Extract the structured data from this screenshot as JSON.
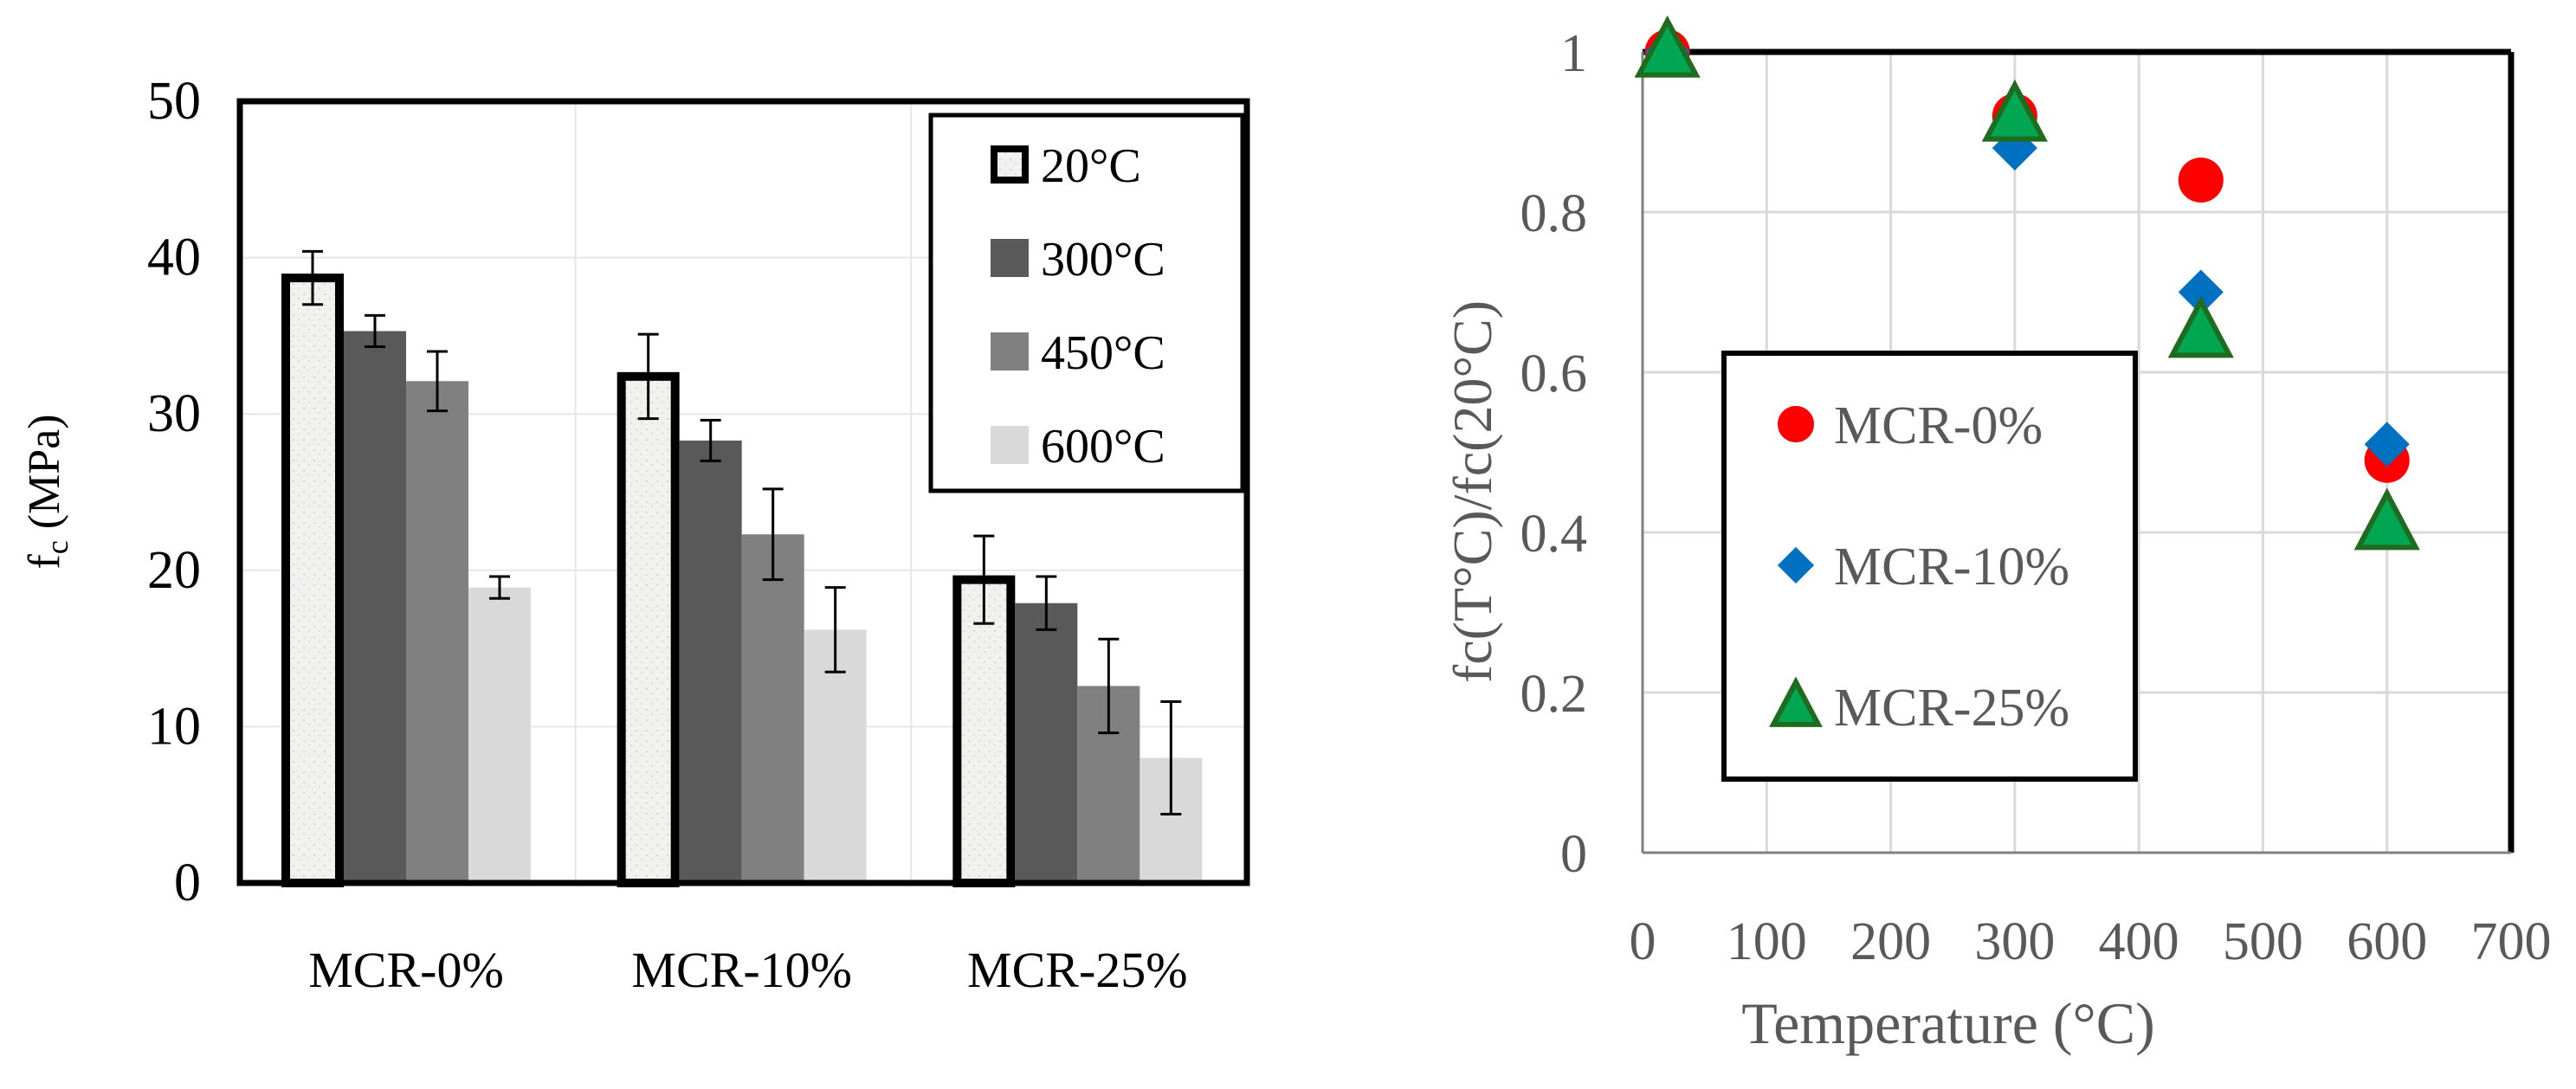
{
  "chart_data": [
    {
      "type": "bar",
      "ylabel_main": "f",
      "ylabel_sub": "c",
      "ylabel_rest": " (MPa)",
      "xlabel": "",
      "ylim": [
        0,
        50
      ],
      "yticks": [
        0,
        10,
        20,
        30,
        40,
        50
      ],
      "categories": [
        "MCR-0%",
        "MCR-10%",
        "MCR-25%"
      ],
      "series": [
        {
          "name": "20°C",
          "values": [
            38.7,
            32.4,
            19.4
          ],
          "errors": [
            1.7,
            2.7,
            2.8
          ],
          "color": "#f0f0ee",
          "style": "outlined"
        },
        {
          "name": "300°C",
          "values": [
            35.3,
            28.3,
            17.9
          ],
          "errors": [
            1.0,
            1.3,
            1.7
          ],
          "color": "#595959",
          "style": "solid"
        },
        {
          "name": "450°C",
          "values": [
            32.1,
            22.3,
            12.6
          ],
          "errors": [
            1.9,
            2.9,
            3.0
          ],
          "color": "#808080",
          "style": "solid"
        },
        {
          "name": "600°C",
          "values": [
            18.9,
            16.2,
            8.0
          ],
          "errors": [
            0.7,
            2.7,
            3.6
          ],
          "color": "#d9d9d9",
          "style": "solid"
        }
      ],
      "grid": true,
      "legend_position": "top-right"
    },
    {
      "type": "scatter",
      "xlabel": "Temperature (°C)",
      "ylabel": "fc(T°C)/fc(20°C)",
      "xlim": [
        0,
        700
      ],
      "ylim": [
        0,
        1
      ],
      "xticks": [
        "0",
        "100",
        "200",
        "300",
        "400",
        "500",
        "600",
        "700"
      ],
      "yticks": [
        "0",
        "0.2",
        "0.4",
        "0.6",
        "0.8",
        "1"
      ],
      "series": [
        {
          "name": "MCR-0%",
          "marker": "circle",
          "color": "#ff0000",
          "x": [
            20,
            300,
            450,
            600
          ],
          "y": [
            1.0,
            0.92,
            0.84,
            0.49
          ]
        },
        {
          "name": "MCR-10%",
          "marker": "diamond",
          "color": "#0070c0",
          "x": [
            20,
            300,
            450,
            600
          ],
          "y": [
            1.0,
            0.88,
            0.7,
            0.51
          ]
        },
        {
          "name": "MCR-25%",
          "marker": "triangle",
          "color": "#00a651",
          "x": [
            20,
            300,
            450,
            600
          ],
          "y": [
            1.0,
            0.92,
            0.65,
            0.41
          ]
        }
      ],
      "grid": true,
      "legend_position": "center-left"
    }
  ]
}
